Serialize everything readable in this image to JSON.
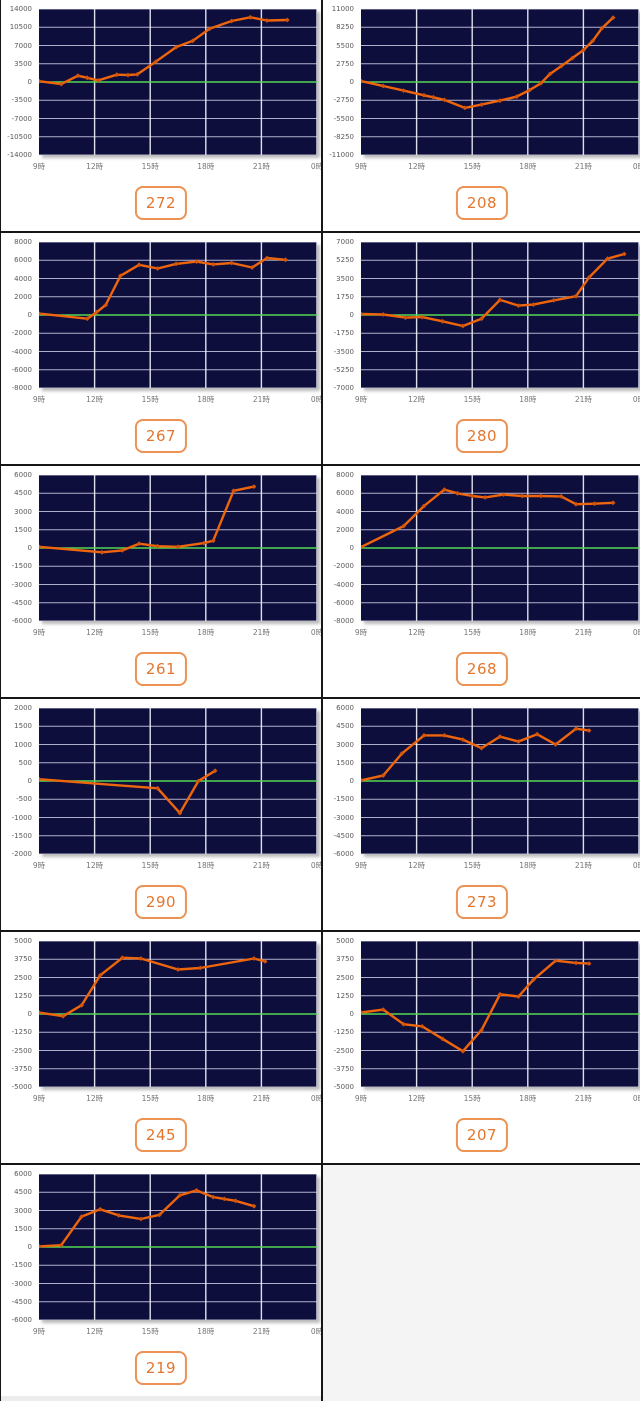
{
  "page": {
    "background": "#ffffff",
    "grid_columns": 2,
    "grid_rows": 6
  },
  "colors": {
    "plot_background": "#0e0e3c",
    "grid_horizontal": "rgba(205,205,230,0.85)",
    "grid_vertical": "rgba(235,235,246,0.95)",
    "zero_line": "#55d655",
    "series_line": "#ee650c",
    "series_marker": "#d4550a",
    "badge_border": "#ec9254",
    "badge_text": "#e2762e",
    "axis_text": "#5a5a5a",
    "cell_border": "#161616",
    "empty_cell_background": "#f4f4f4"
  },
  "chart_common": {
    "x_start_hour": 9,
    "x_end_hour": 24,
    "x_tick_hours": [
      9,
      12,
      15,
      18,
      21,
      24
    ],
    "x_labels": [
      "9時",
      "12時",
      "15時",
      "18時",
      "21時",
      "0時"
    ],
    "grid": true,
    "zero_line": true,
    "type": "line"
  },
  "chart_data": [
    {
      "type": "line",
      "machine_label": "272",
      "ylim": [
        -14000,
        14000
      ],
      "y_step": 3500,
      "y_ticks": [
        "14000",
        "10500",
        "7000",
        "3500",
        "0",
        "-3500",
        "-7000",
        "-10500",
        "-14000"
      ],
      "series": [
        [
          9,
          150
        ],
        [
          10.2,
          -400
        ],
        [
          11.1,
          1200
        ],
        [
          11.6,
          800
        ],
        [
          12.2,
          300
        ],
        [
          13.2,
          1400
        ],
        [
          13.8,
          1350
        ],
        [
          14.3,
          1450
        ],
        [
          15.3,
          3900
        ],
        [
          16.4,
          6700
        ],
        [
          17.3,
          7900
        ],
        [
          18.2,
          10200
        ],
        [
          19.4,
          11700
        ],
        [
          20.4,
          12400
        ],
        [
          21.3,
          11800
        ],
        [
          22.4,
          11900
        ]
      ]
    },
    {
      "type": "line",
      "machine_label": "208",
      "ylim": [
        -11000,
        11000
      ],
      "y_step": 2750,
      "y_ticks": [
        "11000",
        "8250",
        "5500",
        "2750",
        "0",
        "-2750",
        "-5500",
        "-8250",
        "-11000"
      ],
      "series": [
        [
          9,
          150
        ],
        [
          10.2,
          -600
        ],
        [
          11.3,
          -1300
        ],
        [
          12.4,
          -2000
        ],
        [
          12.9,
          -2300
        ],
        [
          13.5,
          -2700
        ],
        [
          14.6,
          -3900
        ],
        [
          15.5,
          -3400
        ],
        [
          16.5,
          -2800
        ],
        [
          17.4,
          -2200
        ],
        [
          18.1,
          -1200
        ],
        [
          18.7,
          -200
        ],
        [
          19.2,
          1200
        ],
        [
          19.8,
          2400
        ],
        [
          20.4,
          3600
        ],
        [
          21,
          4800
        ],
        [
          21.5,
          6200
        ],
        [
          22,
          8100
        ],
        [
          22.6,
          9700
        ]
      ]
    },
    {
      "type": "line",
      "machine_label": "267",
      "ylim": [
        -8000,
        8000
      ],
      "y_step": 2000,
      "y_ticks": [
        "8000",
        "6000",
        "4000",
        "2000",
        "0",
        "-2000",
        "-4000",
        "-6000",
        "-8000"
      ],
      "series": [
        [
          9,
          150
        ],
        [
          11.6,
          -400
        ],
        [
          12.1,
          300
        ],
        [
          12.6,
          1100
        ],
        [
          13.4,
          4300
        ],
        [
          14.4,
          5500
        ],
        [
          15.4,
          5100
        ],
        [
          16.4,
          5600
        ],
        [
          17.5,
          5850
        ],
        [
          18.4,
          5550
        ],
        [
          19.4,
          5700
        ],
        [
          20.5,
          5200
        ],
        [
          21.3,
          6250
        ],
        [
          22.3,
          6050
        ]
      ]
    },
    {
      "type": "line",
      "machine_label": "280",
      "ylim": [
        -7000,
        7000
      ],
      "y_step": 1750,
      "y_ticks": [
        "7000",
        "5250",
        "3500",
        "1750",
        "0",
        "-1750",
        "-3500",
        "-5250",
        "-7000"
      ],
      "series": [
        [
          9,
          100
        ],
        [
          10.2,
          50
        ],
        [
          11.4,
          -250
        ],
        [
          12.3,
          -200
        ],
        [
          13.4,
          -600
        ],
        [
          14.5,
          -1050
        ],
        [
          15.5,
          -350
        ],
        [
          16.5,
          1450
        ],
        [
          17.5,
          900
        ],
        [
          18.3,
          1000
        ],
        [
          19.4,
          1400
        ],
        [
          20.6,
          1800
        ],
        [
          21.3,
          3600
        ],
        [
          22.3,
          5400
        ],
        [
          23.2,
          5850
        ]
      ]
    },
    {
      "type": "line",
      "machine_label": "261",
      "ylim": [
        -6000,
        6000
      ],
      "y_step": 1500,
      "y_ticks": [
        "6000",
        "4500",
        "3000",
        "1500",
        "0",
        "-1500",
        "-3000",
        "-4500",
        "-6000"
      ],
      "series": [
        [
          9,
          100
        ],
        [
          12.4,
          -350
        ],
        [
          13.5,
          -200
        ],
        [
          14.4,
          350
        ],
        [
          15.4,
          150
        ],
        [
          16.5,
          100
        ],
        [
          17.9,
          400
        ],
        [
          18.4,
          600
        ],
        [
          19.5,
          4700
        ],
        [
          20.6,
          5050
        ]
      ]
    },
    {
      "type": "line",
      "machine_label": "268",
      "ylim": [
        -8000,
        8000
      ],
      "y_step": 2000,
      "y_ticks": [
        "8000",
        "6000",
        "4000",
        "2000",
        "0",
        "-2000",
        "-4000",
        "-6000",
        "-8000"
      ],
      "series": [
        [
          9,
          100
        ],
        [
          11.3,
          2400
        ],
        [
          12.4,
          4600
        ],
        [
          13.5,
          6400
        ],
        [
          14.2,
          6000
        ],
        [
          15,
          5700
        ],
        [
          15.7,
          5550
        ],
        [
          16.7,
          5850
        ],
        [
          17.7,
          5700
        ],
        [
          18.7,
          5700
        ],
        [
          19.8,
          5650
        ],
        [
          20.6,
          4800
        ],
        [
          21.6,
          4850
        ],
        [
          22.6,
          4950
        ]
      ]
    },
    {
      "type": "line",
      "machine_label": "290",
      "ylim": [
        -2000,
        2000
      ],
      "y_step": 500,
      "y_ticks": [
        "2000",
        "1500",
        "1000",
        "500",
        "0",
        "-500",
        "-1000",
        "-1500",
        "-2000"
      ],
      "series": [
        [
          9,
          50
        ],
        [
          15.4,
          -200
        ],
        [
          16.6,
          -880
        ],
        [
          17.6,
          0
        ],
        [
          18.5,
          280
        ]
      ]
    },
    {
      "type": "line",
      "machine_label": "273",
      "ylim": [
        -6000,
        6000
      ],
      "y_step": 1500,
      "y_ticks": [
        "6000",
        "4500",
        "3000",
        "1500",
        "0",
        "-1500",
        "-3000",
        "-4500",
        "-6000"
      ],
      "series": [
        [
          9,
          50
        ],
        [
          10.2,
          450
        ],
        [
          11.2,
          2250
        ],
        [
          12.4,
          3750
        ],
        [
          13.5,
          3750
        ],
        [
          14.5,
          3400
        ],
        [
          15.5,
          2700
        ],
        [
          16.5,
          3650
        ],
        [
          17.5,
          3250
        ],
        [
          18.5,
          3850
        ],
        [
          19.5,
          3000
        ],
        [
          20.6,
          4300
        ],
        [
          21.3,
          4150
        ]
      ]
    },
    {
      "type": "line",
      "machine_label": "245",
      "ylim": [
        -5000,
        5000
      ],
      "y_step": 1250,
      "y_ticks": [
        "5000",
        "3750",
        "2500",
        "1250",
        "0",
        "-1250",
        "-2500",
        "-3750",
        "-5000"
      ],
      "series": [
        [
          9,
          100
        ],
        [
          10.3,
          -150
        ],
        [
          11.3,
          600
        ],
        [
          12.3,
          2650
        ],
        [
          13.5,
          3850
        ],
        [
          14.5,
          3800
        ],
        [
          16.5,
          3050
        ],
        [
          17.7,
          3150
        ],
        [
          20.6,
          3800
        ],
        [
          21.2,
          3600
        ]
      ]
    },
    {
      "type": "line",
      "machine_label": "207",
      "ylim": [
        -5000,
        5000
      ],
      "y_step": 1250,
      "y_ticks": [
        "5000",
        "3750",
        "2500",
        "1250",
        "0",
        "-1250",
        "-2500",
        "-3750",
        "-5000"
      ],
      "series": [
        [
          9,
          100
        ],
        [
          10.2,
          300
        ],
        [
          11.3,
          -700
        ],
        [
          12.3,
          -850
        ],
        [
          13.4,
          -1700
        ],
        [
          14.5,
          -2550
        ],
        [
          15.5,
          -1100
        ],
        [
          16.5,
          1350
        ],
        [
          17.5,
          1200
        ],
        [
          18.3,
          2350
        ],
        [
          19.5,
          3650
        ],
        [
          20.6,
          3500
        ],
        [
          21.3,
          3450
        ]
      ]
    },
    {
      "type": "line",
      "machine_label": "219",
      "ylim": [
        -6000,
        6000
      ],
      "y_step": 1500,
      "y_ticks": [
        "6000",
        "4500",
        "3000",
        "1500",
        "0",
        "-1500",
        "-3000",
        "-4500",
        "-6000"
      ],
      "series": [
        [
          9,
          50
        ],
        [
          10.2,
          150
        ],
        [
          11.3,
          2500
        ],
        [
          12.3,
          3100
        ],
        [
          13.3,
          2600
        ],
        [
          14.5,
          2300
        ],
        [
          15.5,
          2650
        ],
        [
          16.6,
          4250
        ],
        [
          17.5,
          4650
        ],
        [
          18.4,
          4100
        ],
        [
          19,
          3950
        ],
        [
          19.6,
          3800
        ],
        [
          20.6,
          3350
        ]
      ]
    },
    {
      "empty": true
    }
  ]
}
